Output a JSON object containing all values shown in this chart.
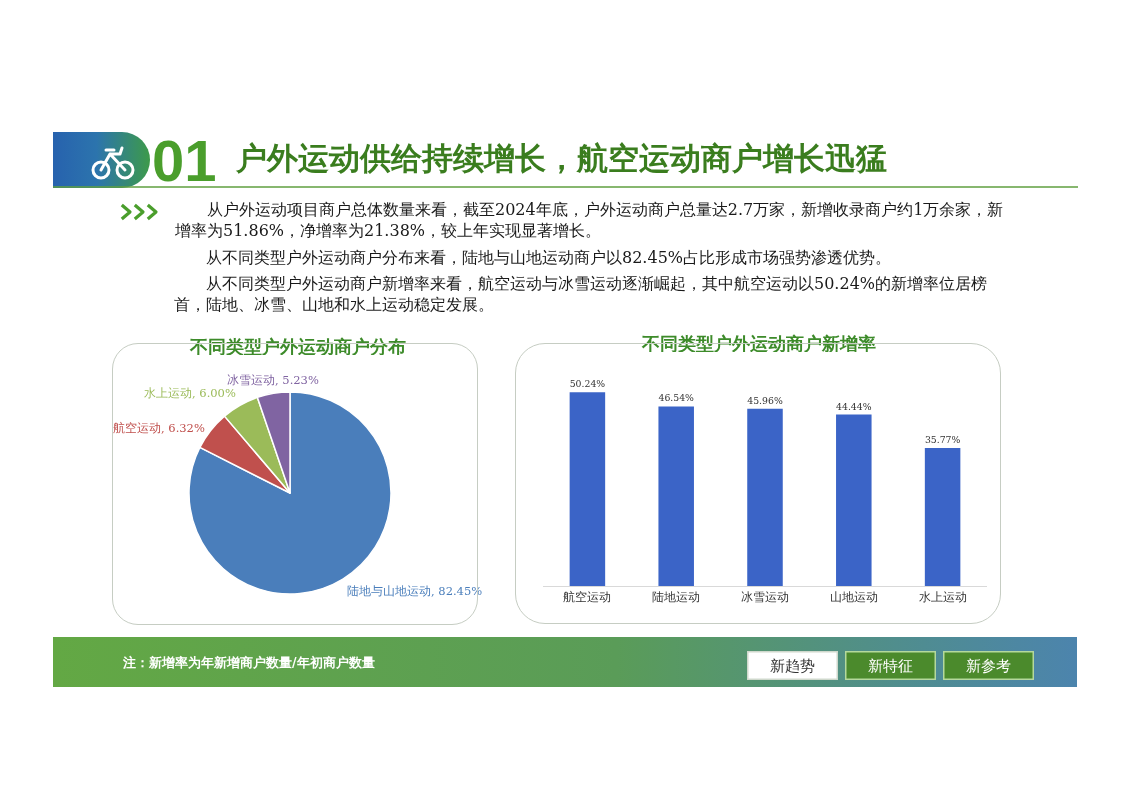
{
  "chart_data": [
    {
      "type": "other",
      "title": "户外运动供给持续增长，航空运动商户增长迅猛",
      "annotations": [
        "01",
        "从户外运动项目商户总体数量来看，截至2024年底，户外运动商户总量达2.7万家，新增收录商户约1万余家，新增率为51.86%，净增率为21.38%，较上年实现显著增长。",
        "从不同类型户外运动商户分布来看，陆地与山地运动商户以82.45%占比形成市场强势渗透优势。",
        "从不同类型户外运动商户新增率来看，航空运动与冰雪运动逐渐崛起，其中航空运动以50.24%的新增率位居榜首，陆地、冰雪、山地和水上运动稳定发展。"
      ]
    },
    {
      "type": "pie",
      "title": "不同类型户外运动商户分布",
      "categories": [
        "陆地与山地运动",
        "航空运动",
        "水上运动",
        "冰雪运动"
      ],
      "values": [
        82.45,
        6.32,
        6.0,
        5.23
      ],
      "colors": [
        "#4a7ebb",
        "#c0504d",
        "#9bbb59",
        "#8064a2"
      ],
      "value_labels": [
        "82.45%",
        "6.32%",
        "6.00%",
        "5.23%"
      ]
    },
    {
      "type": "bar",
      "title": "不同类型户外运动商户新增率",
      "categories": [
        "航空运动",
        "陆地运动",
        "冰雪运动",
        "山地运动",
        "水上运动"
      ],
      "values": [
        50.24,
        46.54,
        45.96,
        44.44,
        35.77
      ],
      "color": "#3b64c7",
      "value_labels": [
        "50.24%",
        "46.54%",
        "45.96%",
        "44.44%",
        "35.77%"
      ]
    },
    {
      "type": "other",
      "annotations": [
        "注：新增率为年新增商户数量/年初商户数量",
        "新趋势",
        "新特征",
        "新参考"
      ]
    }
  ]
}
